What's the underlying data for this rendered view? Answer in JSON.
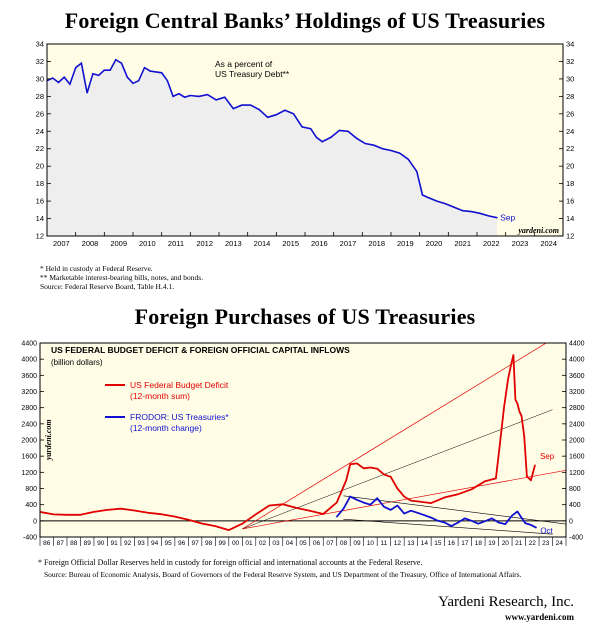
{
  "charts": {
    "top": {
      "title": "Foreign Central Banks’ Holdings of US Treasuries",
      "annotation": [
        "As a percent of",
        "US Treasury Debt**"
      ],
      "end_label": "Sep",
      "watermark": "yardeni.com",
      "footnotes": [
        "* Held in custody at Federal Reserve.",
        "** Marketable interest-bearing bills, notes, and bonds.",
        "Source: Federal Reserve Board, Table H.4.1."
      ]
    },
    "bottom": {
      "title": "Foreign Purchases of US Treasuries",
      "inner_title": "US FEDERAL BUDGET DEFICIT & FOREIGN OFFICIAL CAPITAL INFLOWS",
      "inner_subtitle": "(billion dollars)",
      "legend": [
        {
          "label": "US Federal Budget Deficit",
          "sub": "(12-month sum)",
          "color": "#e00000"
        },
        {
          "label": "FRODOR: US Treasuries*",
          "sub": "(12-month change)",
          "color": "#1010d0"
        }
      ],
      "end_labels": {
        "deficit": "Sep",
        "frodor": "Oct"
      },
      "watermark": "yardeni.com",
      "footnotes": [
        "* Foreign Official Dollar Reserves held in custody for foreign official and international accounts at the Federal Reserve.",
        "Source: Bureau of Economic Analysis, Board of Governors of the Federal Reserve System, and US Department of the Treasury, Office of International Affairs."
      ]
    }
  },
  "footer": {
    "firm": "Yardeni Research, Inc.",
    "url": "www.yardeni.com"
  },
  "colors": {
    "plot_bg": "#fffde6",
    "area_fill": "#eeeeee",
    "blue": "#1010d0",
    "red": "#e00000"
  },
  "chart_data": [
    {
      "type": "area",
      "title": "Foreign Central Banks’ Holdings of US Treasuries",
      "subtitle": "As a percent of US Treasury Debt**",
      "ylim": [
        12,
        34
      ],
      "yticks": [
        12,
        14,
        16,
        18,
        20,
        22,
        24,
        26,
        28,
        30,
        32,
        34
      ],
      "xlim": [
        2007,
        2025
      ],
      "xtick_labels": [
        "2007",
        "2008",
        "2009",
        "2010",
        "2011",
        "2012",
        "2013",
        "2014",
        "2015",
        "2016",
        "2017",
        "2018",
        "2019",
        "2020",
        "2021",
        "2022",
        "2023",
        "2024"
      ],
      "grid": false,
      "series": [
        {
          "x": [
            2007.0,
            2007.2,
            2007.4,
            2007.6,
            2007.8,
            2008.0,
            2008.2,
            2008.4,
            2008.6,
            2008.8,
            2009.0,
            2009.2,
            2009.4,
            2009.6,
            2009.8,
            2010.0,
            2010.2,
            2010.4,
            2010.6,
            2010.8,
            2011.0,
            2011.2,
            2011.4,
            2011.6,
            2011.8,
            2012.0,
            2012.3,
            2012.6,
            2012.9,
            2013.2,
            2013.5,
            2013.8,
            2014.1,
            2014.4,
            2014.7,
            2015.0,
            2015.3,
            2015.6,
            2015.9,
            2016.2,
            2016.4,
            2016.6,
            2016.9,
            2017.2,
            2017.5,
            2017.8,
            2018.1,
            2018.4,
            2018.7,
            2019.0,
            2019.3,
            2019.6,
            2019.9,
            2020.1,
            2020.3,
            2020.6,
            2020.9,
            2021.2,
            2021.5,
            2021.8,
            2022.1,
            2022.4,
            2022.7
          ],
          "values": [
            29.8,
            30.1,
            29.6,
            30.2,
            29.4,
            31.3,
            31.8,
            28.4,
            30.6,
            30.4,
            31.0,
            31.0,
            32.2,
            31.8,
            30.2,
            29.5,
            29.8,
            31.3,
            30.9,
            30.8,
            30.7,
            29.8,
            28.0,
            28.3,
            27.9,
            28.1,
            28.0,
            28.2,
            27.6,
            27.9,
            26.6,
            27.0,
            27.0,
            26.5,
            25.6,
            25.9,
            26.4,
            26.0,
            24.5,
            24.3,
            23.3,
            22.8,
            23.3,
            24.1,
            24.0,
            23.2,
            22.6,
            22.4,
            22.0,
            21.8,
            21.5,
            20.8,
            19.4,
            16.7,
            16.4,
            16.0,
            15.7,
            15.3,
            14.9,
            14.8,
            14.6,
            14.3,
            14.1
          ]
        }
      ]
    },
    {
      "type": "line",
      "title": "US FEDERAL BUDGET DEFICIT & FOREIGN OFFICIAL CAPITAL INFLOWS",
      "subtitle": "(billion dollars)",
      "ylim": [
        -400,
        4400
      ],
      "yticks": [
        -400,
        0,
        400,
        800,
        1200,
        1600,
        2000,
        2400,
        2800,
        3200,
        3600,
        4000,
        4400
      ],
      "xlim": [
        1986,
        2025
      ],
      "xtick_labels": [
        "86",
        "87",
        "88",
        "89",
        "90",
        "91",
        "92",
        "93",
        "94",
        "95",
        "96",
        "97",
        "98",
        "99",
        "00",
        "01",
        "02",
        "03",
        "04",
        "05",
        "06",
        "07",
        "08",
        "09",
        "10",
        "11",
        "12",
        "13",
        "14",
        "15",
        "16",
        "17",
        "18",
        "19",
        "20",
        "21",
        "22",
        "23",
        "24"
      ],
      "grid": false,
      "series": [
        {
          "name": "US Federal Budget Deficit",
          "color": "#e00000",
          "x": [
            1986,
            1987,
            1988,
            1989,
            1990,
            1991,
            1992,
            1993,
            1994,
            1995,
            1996,
            1997,
            1998,
            1999,
            2000,
            2001,
            2002,
            2003,
            2004,
            2005,
            2006,
            2007,
            2008,
            2008.7,
            2009.0,
            2009.5,
            2010.0,
            2010.5,
            2011.0,
            2011.5,
            2012.0,
            2012.5,
            2013.0,
            2013.5,
            2014.0,
            2015.0,
            2016.0,
            2017.0,
            2018.0,
            2019.0,
            2019.8,
            2020.1,
            2020.4,
            2020.7,
            2020.95,
            2021.1,
            2021.25,
            2021.4,
            2021.55,
            2021.7,
            2021.9,
            2022.1,
            2022.4,
            2022.7
          ],
          "values": [
            220,
            160,
            150,
            150,
            220,
            270,
            300,
            255,
            200,
            165,
            105,
            25,
            -65,
            -130,
            -230,
            -70,
            160,
            380,
            410,
            320,
            250,
            170,
            450,
            1000,
            1400,
            1420,
            1300,
            1320,
            1290,
            1150,
            1090,
            800,
            600,
            500,
            480,
            440,
            580,
            660,
            780,
            980,
            1050,
            1900,
            2800,
            3500,
            3900,
            4100,
            3000,
            2900,
            2700,
            2600,
            2100,
            1100,
            1000,
            1380
          ]
        },
        {
          "name": "FRODOR: US Treasuries*",
          "color": "#1010d0",
          "x": [
            2008.0,
            2008.5,
            2009.0,
            2009.5,
            2010.0,
            2010.5,
            2011.0,
            2011.5,
            2012.0,
            2012.5,
            2013.0,
            2013.5,
            2014.0,
            2014.5,
            2015.0,
            2015.5,
            2016.0,
            2016.5,
            2017.0,
            2017.5,
            2018.0,
            2018.5,
            2019.0,
            2019.5,
            2020.0,
            2020.5,
            2021.0,
            2021.4,
            2021.7,
            2022.0,
            2022.4,
            2022.8
          ],
          "values": [
            100,
            300,
            600,
            520,
            450,
            400,
            560,
            350,
            270,
            380,
            180,
            250,
            200,
            140,
            80,
            0,
            -40,
            -130,
            -40,
            60,
            0,
            -70,
            -10,
            60,
            -40,
            -80,
            130,
            230,
            80,
            -60,
            -100,
            -170
          ]
        }
      ]
    }
  ]
}
